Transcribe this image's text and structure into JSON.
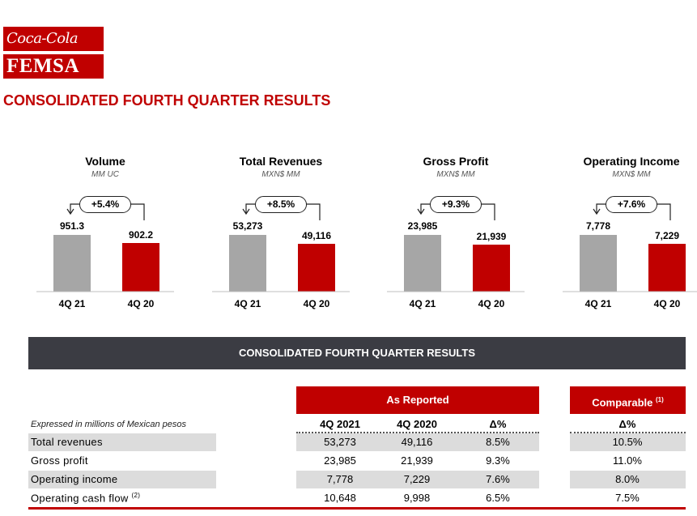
{
  "logo": {
    "line1": "Coca-Cola",
    "line2": "FEMSA"
  },
  "page_title": "CONSOLIDATED FOURTH QUARTER RESULTS",
  "colors": {
    "brand_red": "#c00000",
    "bar_gray": "#a6a6a6",
    "band_dark": "#3b3c43",
    "row_gray": "#dcdcdc"
  },
  "kpis": [
    {
      "title": "Volume",
      "unit": "MM UC",
      "change": "+5.4%",
      "v1_label": "951.3",
      "v2_label": "902.2",
      "v1": 951.3,
      "v2": 902.2,
      "x1": "4Q 21",
      "x2": "4Q 20"
    },
    {
      "title": "Total Revenues",
      "unit": "MXN$ MM",
      "change": "+8.5%",
      "v1_label": "53,273",
      "v2_label": "49,116",
      "v1": 53273,
      "v2": 49116,
      "x1": "4Q 21",
      "x2": "4Q 20"
    },
    {
      "title": "Gross Profit",
      "unit": "MXN$ MM",
      "change": "+9.3%",
      "v1_label": "23,985",
      "v2_label": "21,939",
      "v1": 23985,
      "v2": 21939,
      "x1": "4Q 21",
      "x2": "4Q 20"
    },
    {
      "title": "Operating Income",
      "unit": "MXN$ MM",
      "change": "+7.6%",
      "v1_label": "7,778",
      "v2_label": "7,229",
      "v1": 7778,
      "v2": 7229,
      "x1": "4Q 21",
      "x2": "4Q 20"
    }
  ],
  "table": {
    "band_title": "CONSOLIDATED FOURTH QUARTER RESULTS",
    "as_reported_label": "As Reported",
    "comparable_label": "Comparable",
    "comparable_note": "(1)",
    "expressed_note": "Expressed in millions of Mexican pesos",
    "columns": [
      "4Q 2021",
      "4Q 2020",
      "Δ%"
    ],
    "comparable_column": "Δ%",
    "rows": [
      {
        "label": "Total revenues",
        "note": "",
        "q2021": "53,273",
        "q2020": "49,116",
        "delta": "8.5%",
        "comparable": "10.5%"
      },
      {
        "label": "Gross profit",
        "note": "",
        "q2021": "23,985",
        "q2020": "21,939",
        "delta": "9.3%",
        "comparable": "11.0%"
      },
      {
        "label": "Operating income",
        "note": "",
        "q2021": "7,778",
        "q2020": "7,229",
        "delta": "7.6%",
        "comparable": "8.0%"
      },
      {
        "label": "Operating cash flow",
        "note": "(2)",
        "q2021": "10,648",
        "q2020": "9,998",
        "delta": "6.5%",
        "comparable": "7.5%"
      }
    ]
  }
}
